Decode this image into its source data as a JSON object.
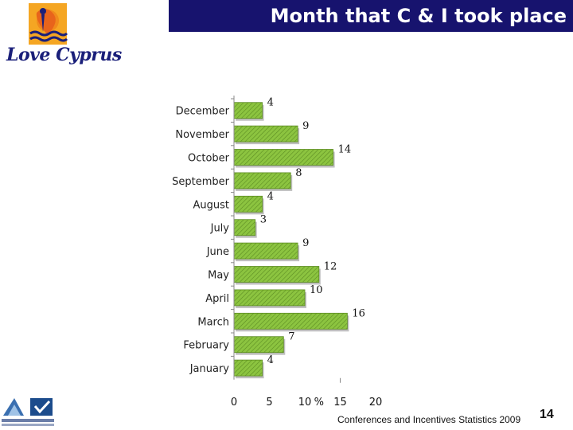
{
  "header": {
    "title": "Month that C & I took place"
  },
  "logo": {
    "text": "Love Cyprus",
    "icon": "sun-figure-icon"
  },
  "footer": {
    "source": "Conferences and Incentives Statistics 2009",
    "page_number": "14"
  },
  "colors": {
    "title_bg": "#17136e",
    "bar": "#8cc440",
    "bar_dark": "#5c8c22"
  },
  "chart_data": {
    "type": "bar",
    "orientation": "horizontal",
    "title": "",
    "xlabel": "%",
    "ylabel": "",
    "categories": [
      "December",
      "November",
      "October",
      "September",
      "August",
      "July",
      "June",
      "May",
      "April",
      "March",
      "February",
      "January"
    ],
    "values": [
      4,
      9,
      14,
      8,
      4,
      3,
      9,
      12,
      10,
      16,
      7,
      4
    ],
    "xlim": [
      0,
      20
    ],
    "xticks": [
      "0",
      "5",
      "10",
      "15",
      "20"
    ],
    "grid": false,
    "legend": "none"
  }
}
